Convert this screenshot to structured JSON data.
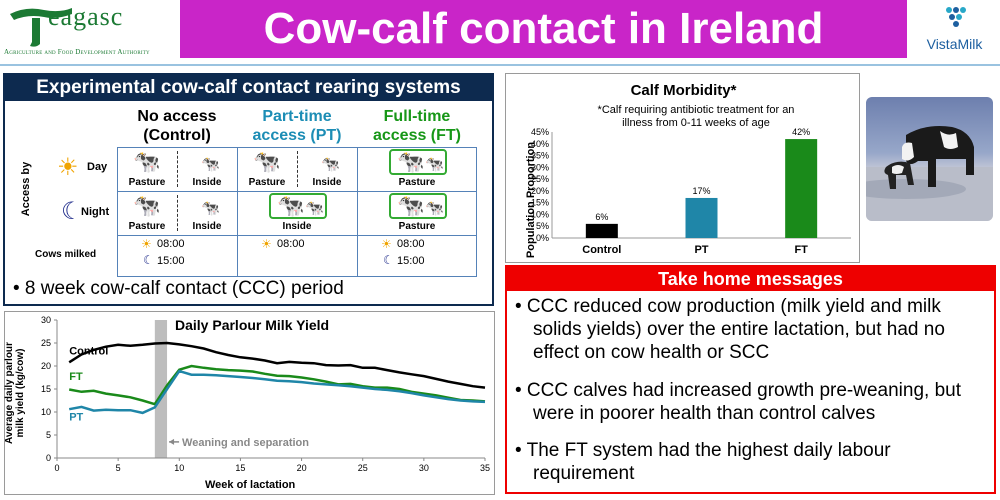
{
  "header": {
    "logo_t": "T",
    "logo_rest": "eagasc",
    "logo_sub": "Agriculture and Food Development Authority",
    "title": "Cow-calf contact in Ireland",
    "partner_name": "VistaMilk"
  },
  "experiment": {
    "title": "Experimental cow-calf contact rearing systems",
    "columns": [
      {
        "line1": "No access",
        "line2": "(Control)",
        "color": "#000000"
      },
      {
        "line1": "Part-time",
        "line2": "access (PT)",
        "color": "#1c8db5"
      },
      {
        "line1": "Full-time",
        "line2": "access (FT)",
        "color": "#179717"
      }
    ],
    "row_heading": "Access by",
    "day_label": "Day",
    "night_label": "Night",
    "pasture": "Pasture",
    "inside": "Inside",
    "cows_milked_label": "Cows milked",
    "morning_time": "08:00",
    "evening_time": "15:00",
    "ccc_period": "• 8 week cow-calf contact (CCC) period"
  },
  "morbidity": {
    "title": "Calf Morbidity*",
    "subtitle_line1": "*Calf requiring antibiotic treatment for an",
    "subtitle_line2": "illness from 0-11 weeks of age",
    "ylabel": "Population Proportion"
  },
  "take_home": {
    "title": "Take home messages",
    "items": [
      "• CCC reduced cow production (milk yield and milk solids yields) over the entire lactation, but had no effect on cow health or SCC",
      "• CCC calves had increased growth pre-weaning, but were in poorer health than control calves",
      "• The FT system had the highest daily labour requirement"
    ]
  },
  "milk": {
    "title": "Daily Parlour Milk Yield",
    "ylabel_line1": "Average daily parlour",
    "ylabel_line2": "milk yield (kg/cow)",
    "xlabel": "Week of lactation",
    "weaning_annotation": "Weaning and separation"
  },
  "chart_data": [
    {
      "type": "bar",
      "title": "Calf Morbidity*",
      "categories": [
        "Control",
        "PT",
        "FT"
      ],
      "values": [
        6,
        17,
        42
      ],
      "data_labels": [
        "6%",
        "17%",
        "42%"
      ],
      "colors": [
        "#000000",
        "#1f86a8",
        "#1a8a1a"
      ],
      "ylabel": "Population Proportion",
      "ylim": [
        0,
        45
      ],
      "yticks": [
        "0%",
        "5%",
        "10%",
        "15%",
        "20%",
        "25%",
        "30%",
        "35%",
        "40%",
        "45%"
      ]
    },
    {
      "type": "line",
      "title": "Daily Parlour Milk Yield",
      "xlabel": "Week of lactation",
      "ylabel": "Average daily parlour milk yield (kg/cow)",
      "xlim": [
        0,
        35
      ],
      "ylim": [
        0,
        30
      ],
      "xticks": [
        0,
        5,
        10,
        15,
        20,
        25,
        30,
        35
      ],
      "yticks": [
        0,
        5,
        10,
        15,
        20,
        25,
        30
      ],
      "weaning_band": [
        8,
        9
      ],
      "series": [
        {
          "name": "Control",
          "color": "#000000",
          "x": [
            1,
            2,
            3,
            4,
            5,
            6,
            7,
            8,
            9,
            10,
            11,
            12,
            13,
            14,
            15,
            16,
            17,
            18,
            19,
            20,
            21,
            22,
            23,
            24,
            25,
            26,
            27,
            28,
            29,
            30,
            31,
            32,
            33,
            34,
            35
          ],
          "y": [
            20.8,
            22.5,
            23.5,
            24.2,
            24.6,
            24.4,
            24.6,
            24.9,
            25.0,
            24.7,
            24.3,
            23.8,
            23.0,
            22.4,
            21.9,
            21.6,
            21.2,
            20.6,
            20.9,
            20.7,
            20.6,
            20.2,
            20.1,
            20.2,
            19.6,
            19.6,
            19.1,
            18.6,
            18.2,
            17.8,
            17.2,
            16.6,
            16.1,
            15.6,
            15.3
          ]
        },
        {
          "name": "FT",
          "color": "#1a8a1a",
          "x": [
            1,
            2,
            3,
            4,
            5,
            6,
            7,
            8,
            9,
            10,
            11,
            12,
            13,
            14,
            15,
            16,
            17,
            18,
            19,
            20,
            21,
            22,
            23,
            24,
            25,
            26,
            27,
            28,
            29,
            30,
            31,
            32,
            33,
            34,
            35
          ],
          "y": [
            14.9,
            14.4,
            14.6,
            14.0,
            13.6,
            13.2,
            12.5,
            11.7,
            15.8,
            19.2,
            20.0,
            19.6,
            19.3,
            19.1,
            19.0,
            18.8,
            18.3,
            17.9,
            17.8,
            17.5,
            17.1,
            16.6,
            16.0,
            16.1,
            15.6,
            15.3,
            15.3,
            15.0,
            14.4,
            14.0,
            13.6,
            13.1,
            12.6,
            12.5,
            12.3
          ]
        },
        {
          "name": "PT",
          "color": "#1f86a8",
          "x": [
            1,
            2,
            3,
            4,
            5,
            6,
            7,
            8,
            9,
            10,
            11,
            12,
            13,
            14,
            15,
            16,
            17,
            18,
            19,
            20,
            21,
            22,
            23,
            24,
            25,
            26,
            27,
            28,
            29,
            30,
            31,
            32,
            33,
            34,
            35
          ],
          "y": [
            10.6,
            11.1,
            10.3,
            10.5,
            10.4,
            10.4,
            9.8,
            11.0,
            15.0,
            18.9,
            18.1,
            18.1,
            18.0,
            17.8,
            17.6,
            17.4,
            17.1,
            16.8,
            16.7,
            16.5,
            16.2,
            16.0,
            15.8,
            15.6,
            15.3,
            15.0,
            14.8,
            14.5,
            14.1,
            13.6,
            13.2,
            12.8,
            12.5,
            12.3,
            12.2
          ]
        }
      ]
    }
  ]
}
